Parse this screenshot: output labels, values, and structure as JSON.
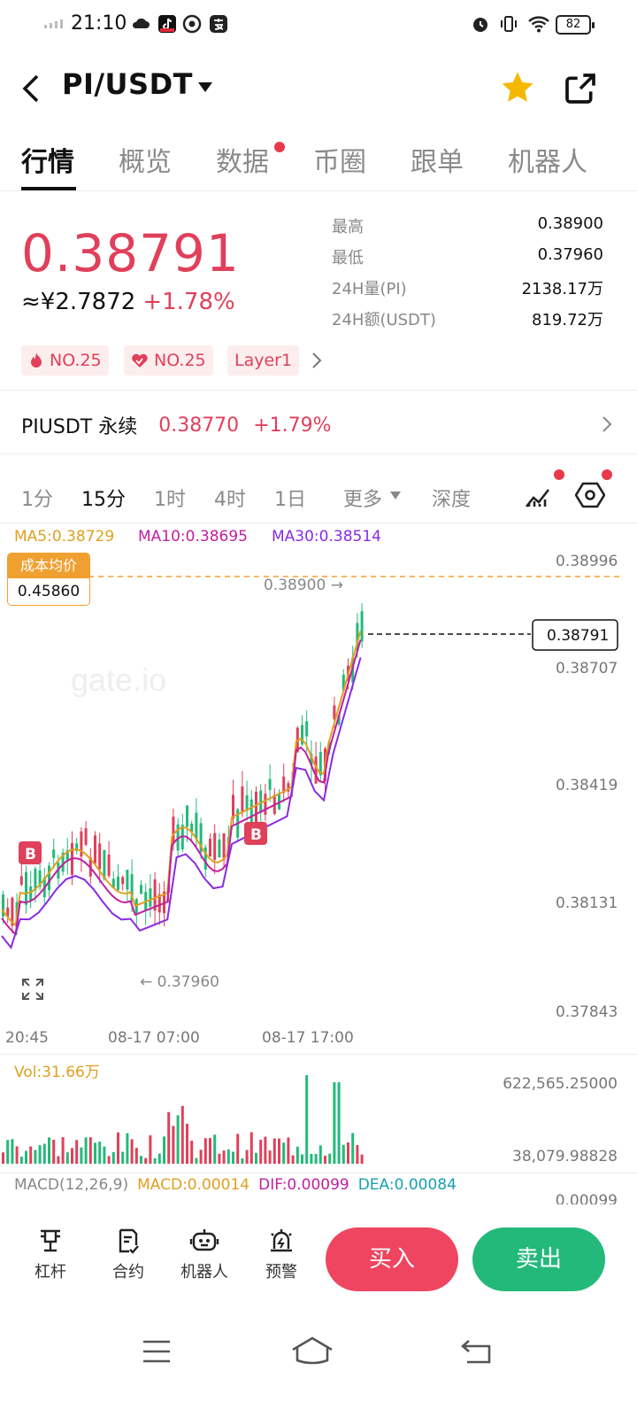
{
  "status_bar": {
    "time": "21:10",
    "battery": "82"
  },
  "header": {
    "pair": "PI/USDT"
  },
  "tabs": [
    "行情",
    "概览",
    "数据",
    "币圈",
    "跟单",
    "机器人"
  ],
  "price": {
    "last": "0.38791",
    "cny": "≈¥2.7872",
    "change": "+1.78%"
  },
  "stats": [
    {
      "label": "最高",
      "value": "0.38900"
    },
    {
      "label": "最低",
      "value": "0.37960"
    },
    {
      "label": "24H量(PI)",
      "value": "2138.17万"
    },
    {
      "label": "24H额(USDT)",
      "value": "819.72万"
    }
  ],
  "tags": [
    "NO.25",
    "NO.25",
    "Layer1"
  ],
  "perpetual": {
    "name": "PIUSDT 永续",
    "price": "0.38770",
    "change": "+1.79%"
  },
  "intervals": [
    "1分",
    "15分",
    "1时",
    "4时",
    "1日",
    "更多",
    "深度"
  ],
  "active_interval": "15分",
  "ma": {
    "ma5": "MA5:0.38729",
    "ma10": "MA10:0.38695",
    "ma30": "MA30:0.38514"
  },
  "cost_avg": {
    "label": "成本均价",
    "value": "0.45860"
  },
  "chart_annotations": {
    "high": "0.38900 →",
    "low": "← 0.37960",
    "current": "0.38791",
    "marker": "B"
  },
  "price_axis": [
    "0.38996",
    "0.38707",
    "0.38419",
    "0.38131",
    "0.37843"
  ],
  "time_axis": [
    "20:45",
    "08-17 07:00",
    "08-17 17:00"
  ],
  "volume": {
    "label": "Vol:31.66万",
    "max": "622,565.25000",
    "min": "38,079.98828"
  },
  "macd": {
    "params": "MACD(12,26,9)",
    "macd": "MACD:0.00014",
    "dif": "DIF:0.00099",
    "dea": "DEA:0.00084",
    "axis": "0.00099"
  },
  "bottom_bar": {
    "items": [
      "杠杆",
      "合约",
      "机器人",
      "预警"
    ],
    "buy": "买入",
    "sell": "卖出"
  },
  "colors": {
    "up": "#e0405a",
    "down": "#23b97a",
    "ma5": "#e0a020",
    "ma10": "#c020a0",
    "ma30": "#8a2be2"
  }
}
